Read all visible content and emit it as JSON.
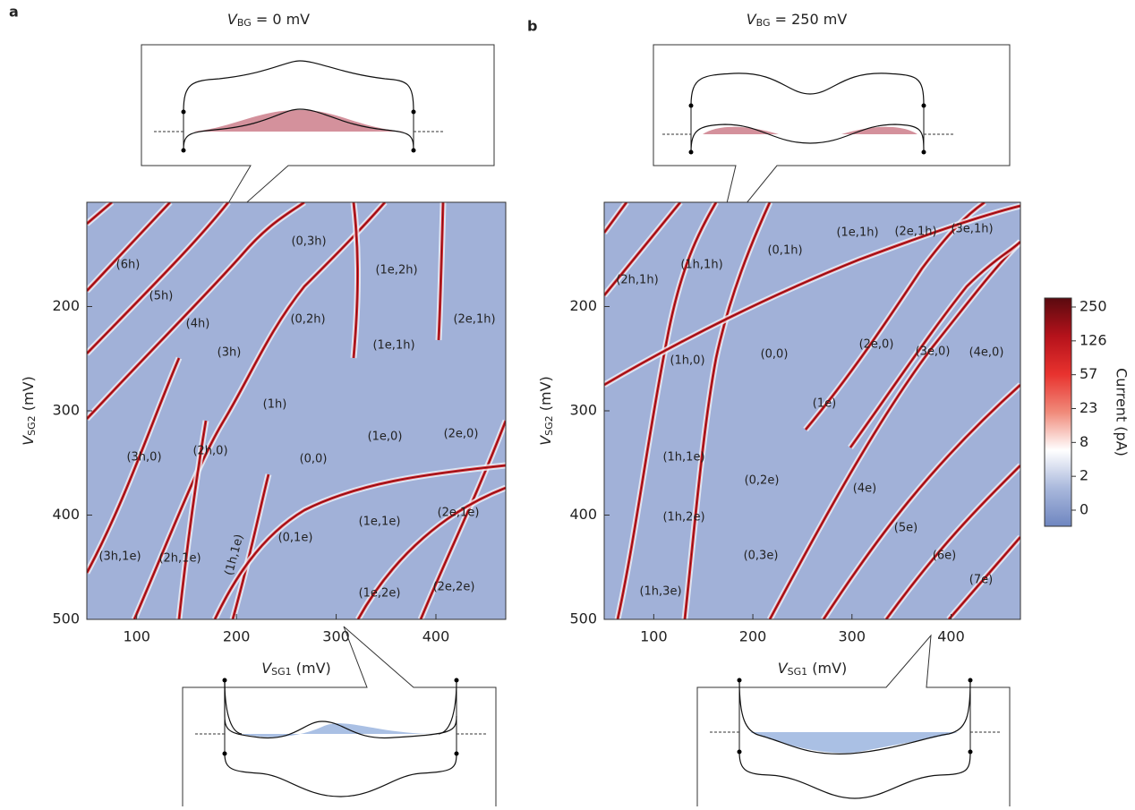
{
  "chart_data": [
    {
      "type": "heatmap",
      "panel": "a",
      "title": {
        "symbol": "V",
        "subscript": "BG",
        "text": " = 0 mV"
      },
      "xlabel": {
        "symbol": "V",
        "subscript": "SG1",
        "text": " (mV)"
      },
      "ylabel": {
        "symbol": "V",
        "subscript": "SG2",
        "text": " (mV)"
      },
      "xlim": [
        50,
        470
      ],
      "ylim": [
        500,
        100
      ],
      "xticks": [
        100,
        200,
        300,
        400
      ],
      "yticks": [
        200,
        300,
        400,
        500
      ],
      "annotations": [
        "(6h)",
        "(5h)",
        "(4h)",
        "(3h)",
        "(0,3h)",
        "(1e,2h)",
        "(0,2h)",
        "(2e,1h)",
        "(1e,1h)",
        "(1h)",
        "(3h,0)",
        "(2h,0)",
        "(0,0)",
        "(1e,0)",
        "(2e,0)",
        "(1e,1e)",
        "(2e,1e)",
        "(0,1e)",
        "(1h,1e)",
        "(3h,1e)",
        "(2h,1e)",
        "(1e,2e)",
        "(2e,2e)"
      ]
    },
    {
      "type": "heatmap",
      "panel": "b",
      "title": {
        "symbol": "V",
        "subscript": "BG",
        "text": " = 250 mV"
      },
      "xlabel": {
        "symbol": "V",
        "subscript": "SG1",
        "text": " (mV)"
      },
      "ylabel": {
        "symbol": "V",
        "subscript": "SG2",
        "text": " (mV)"
      },
      "xlim": [
        50,
        470
      ],
      "ylim": [
        500,
        100
      ],
      "xticks": [
        100,
        200,
        300,
        400
      ],
      "yticks": [
        200,
        300,
        400,
        500
      ],
      "annotations": [
        "(2h,1h)",
        "(1h,1h)",
        "(0,1h)",
        "(1e,1h)",
        "(2e,1h)",
        "(3e,1h)",
        "(1h,0)",
        "(0,0)",
        "(2e,0)",
        "(3e,0)",
        "(4e,0)",
        "(1e)",
        "(1h,1e)",
        "(0,2e)",
        "(4e)",
        "(1h,2e)",
        "(5e)",
        "(0,3e)",
        "(6e)",
        "(1h,3e)",
        "(7e)"
      ],
      "colorbar": {
        "label": "Current (pA)",
        "ticks": [
          250,
          126,
          57,
          23,
          8,
          2,
          0
        ],
        "colors": [
          "#5a0a0f",
          "#b5121b",
          "#e8322e",
          "#f08a7a",
          "#ffffff",
          "#a9b8dc",
          "#6f86c0"
        ]
      }
    }
  ]
}
